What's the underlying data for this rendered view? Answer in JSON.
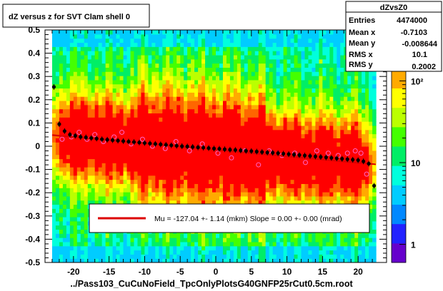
{
  "title_box": {
    "text": "dZ versus  z for SVT Clam shell 0"
  },
  "stats_box": {
    "name": "dZvsZ0",
    "rows": [
      {
        "label": "Entries",
        "value": "4474000"
      },
      {
        "label": "Mean x",
        "value": "-0.7103"
      },
      {
        "label": "Mean y",
        "value": "-0.008644"
      },
      {
        "label": "RMS x",
        "value": "10.1"
      },
      {
        "label": "RMS y",
        "value": "0.2002"
      }
    ]
  },
  "legend": {
    "text": "Mu = -127.04 +-  1.14 (mkm) Slope =    0.00 +-  0.00 (mrad)",
    "line_color": "#dd0000"
  },
  "xlabel": "../Pass103_CuCuNoField_TpcOnlyPlotsG40GNFP25rCut0.5cm.root",
  "chart_data": {
    "type": "heatmap",
    "title": "dZ versus  z for SVT Clam shell 0",
    "xlabel": "../Pass103_CuCuNoField_TpcOnlyPlotsG40GNFP25rCut0.5cm.root",
    "ylabel": "",
    "xlim": [
      -24,
      24
    ],
    "ylim": [
      -0.5,
      0.5
    ],
    "x_ticks": [
      -20,
      -15,
      -10,
      -5,
      0,
      5,
      10,
      15,
      20
    ],
    "x_tick_labels": [
      "-20",
      "-15",
      "-10",
      "-5",
      "0",
      "5",
      "10",
      "15",
      "20"
    ],
    "y_ticks": [
      -0.5,
      -0.4,
      -0.3,
      -0.2,
      -0.1,
      0,
      0.1,
      0.2,
      0.3,
      0.4,
      0.5
    ],
    "y_tick_labels": [
      "-0.5",
      "-0.4",
      "-0.3",
      "-0.2",
      "-0.1",
      "0",
      "0.1",
      "0.2",
      "0.3",
      "0.4",
      "0.5"
    ],
    "z_scale": "log",
    "z_ticks": [
      1,
      10,
      100
    ],
    "z_tick_labels": [
      "1",
      "10",
      "10²"
    ],
    "colormap": [
      "#6600cc",
      "#2222ff",
      "#0088ff",
      "#00ccff",
      "#00ffdd",
      "#00ee66",
      "#44ff00",
      "#bbff00",
      "#ffff00",
      "#ffaa00",
      "#ff6600",
      "#ff0000"
    ],
    "series": [
      {
        "name": "profile",
        "color": "#000000",
        "x": [
          -22.75,
          -22.0,
          -21.25,
          -20.5,
          -19.75,
          -19.0,
          -18.25,
          -17.5,
          -16.75,
          -16.0,
          -15.25,
          -14.5,
          -13.75,
          -13.0,
          -12.25,
          -11.5,
          -10.75,
          -10.0,
          -9.25,
          -8.5,
          -7.75,
          -7.0,
          -6.25,
          -5.5,
          -4.75,
          -4.0,
          -3.25,
          -2.5,
          -1.75,
          -1.0,
          -0.25,
          0.5,
          1.25,
          2.0,
          2.75,
          3.5,
          4.25,
          5.0,
          5.75,
          6.5,
          7.25,
          8.0,
          8.75,
          9.5,
          10.25,
          11.0,
          11.75,
          12.5,
          13.25,
          14.0,
          14.75,
          15.5,
          16.25,
          17.0,
          17.75,
          18.5,
          19.25,
          20.0,
          20.75,
          21.5,
          22.25
        ],
        "y": [
          0.255,
          0.095,
          0.065,
          0.05,
          0.045,
          0.04,
          0.038,
          0.035,
          0.033,
          0.03,
          0.028,
          0.026,
          0.024,
          0.022,
          0.02,
          0.018,
          0.016,
          0.014,
          0.012,
          0.01,
          0.008,
          0.006,
          0.004,
          0.002,
          0.0,
          -0.001,
          -0.003,
          -0.005,
          -0.006,
          -0.008,
          -0.01,
          -0.011,
          -0.013,
          -0.015,
          -0.016,
          -0.018,
          -0.02,
          -0.021,
          -0.023,
          -0.025,
          -0.027,
          -0.028,
          -0.03,
          -0.032,
          -0.034,
          -0.036,
          -0.038,
          -0.04,
          -0.042,
          -0.044,
          -0.046,
          -0.048,
          -0.05,
          -0.052,
          -0.054,
          -0.056,
          -0.058,
          -0.06,
          -0.065,
          -0.075,
          -0.17
        ]
      },
      {
        "name": "outliers",
        "color": "#ff66cc",
        "x": [
          -21.6,
          -20.3,
          -19.2,
          -18.1,
          -17.0,
          -15.8,
          -14.3,
          -13.2,
          -11.9,
          -10.3,
          -8.9,
          -7.1,
          -5.6,
          -3.7,
          -1.9,
          0.3,
          2.2,
          4.1,
          6.0,
          7.5,
          9.3,
          11.1,
          12.6,
          14.2,
          15.8,
          17.2,
          18.5,
          19.6,
          20.4,
          21.2
        ],
        "y": [
          0.03,
          0.04,
          0.06,
          0.03,
          0.05,
          0.02,
          0.04,
          0.06,
          0.01,
          0.03,
          0.0,
          -0.01,
          0.02,
          -0.02,
          0.01,
          -0.03,
          -0.05,
          -0.02,
          -0.08,
          -0.02,
          -0.04,
          -0.03,
          -0.07,
          -0.02,
          -0.03,
          -0.04,
          -0.03,
          -0.02,
          -0.03,
          -0.12
        ]
      },
      {
        "name": "fit",
        "color": "#dd0000",
        "x": [
          -23,
          22.5
        ],
        "y": [
          0.048,
          -0.078
        ]
      }
    ]
  }
}
